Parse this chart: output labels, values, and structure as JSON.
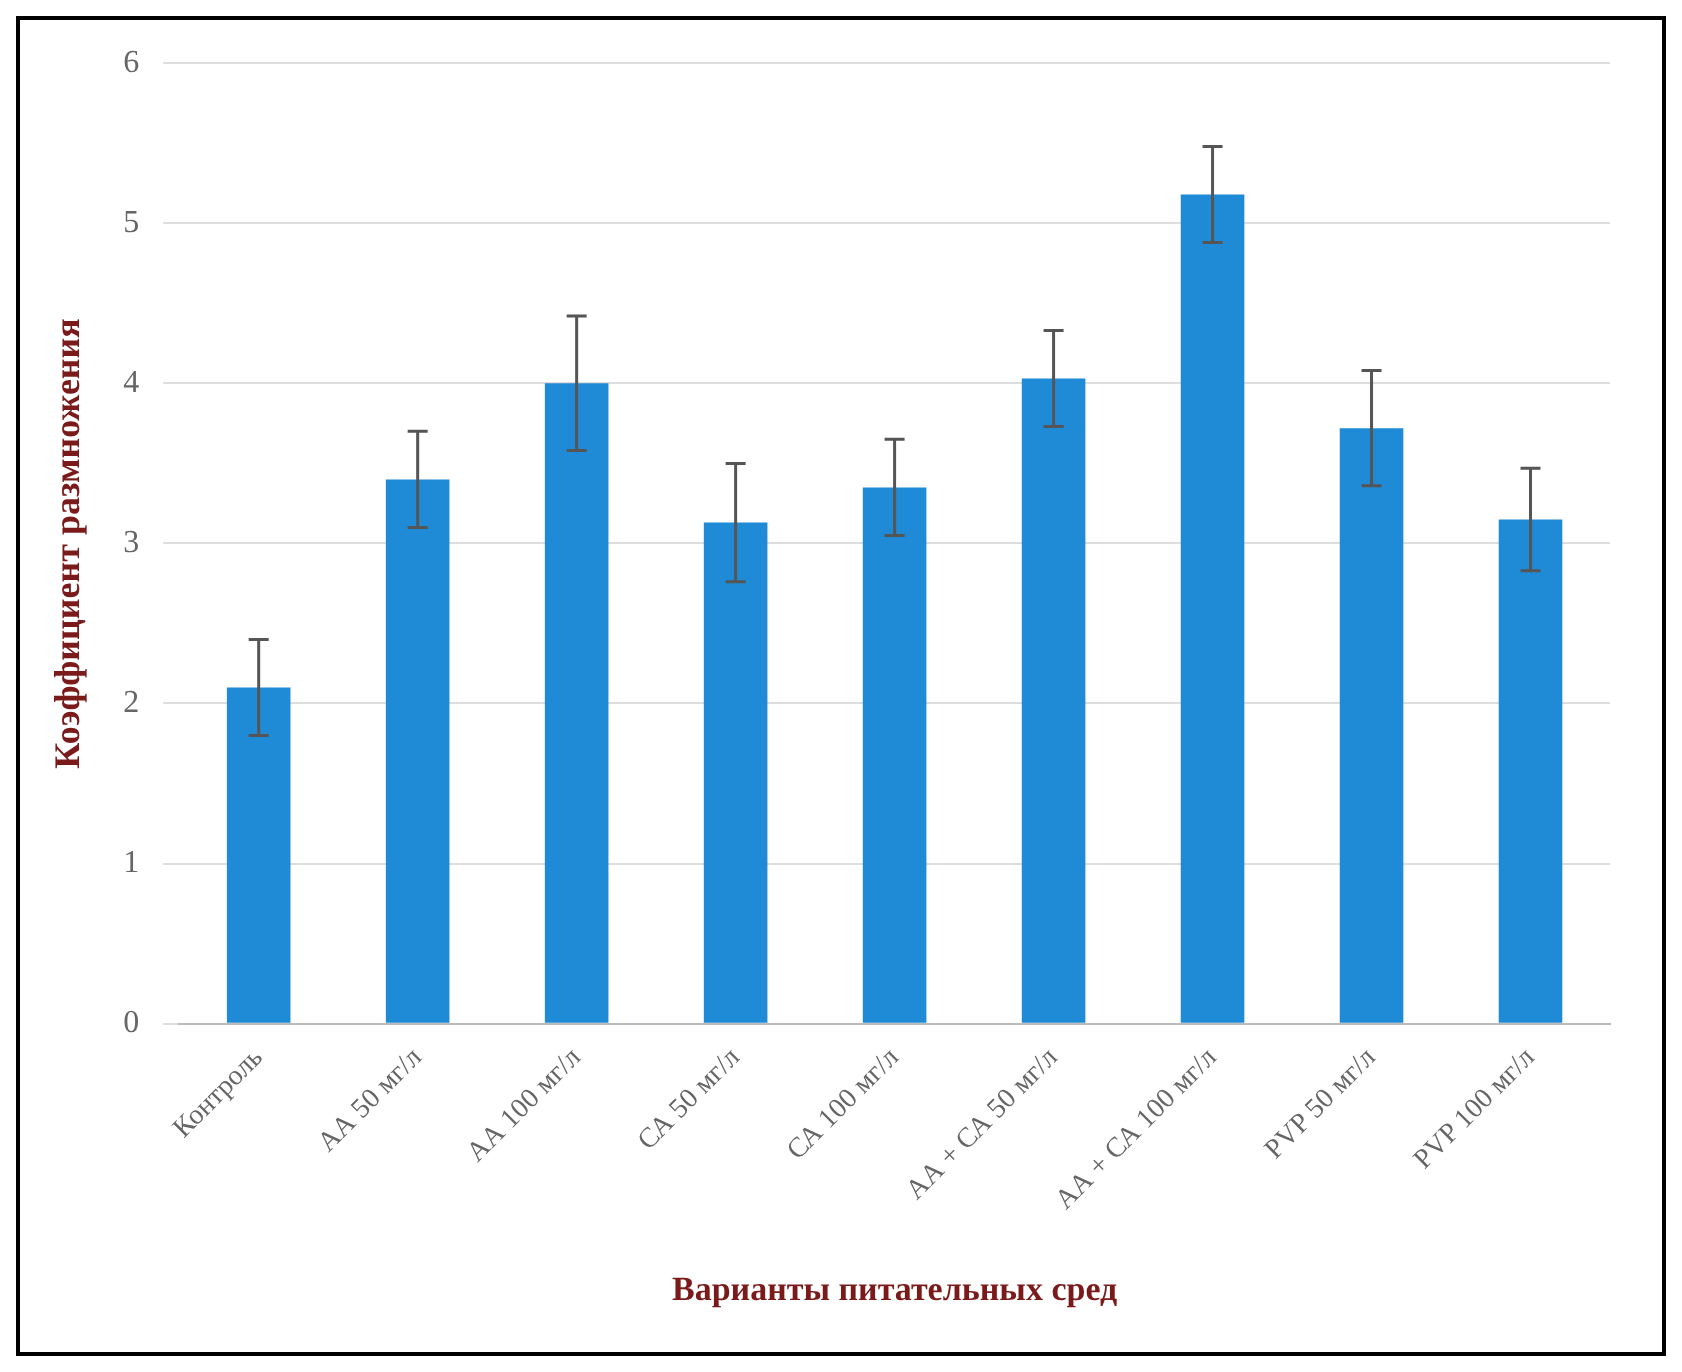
{
  "chart_data": {
    "type": "bar",
    "xlabel": "Варианты питательных сред",
    "ylabel": "Коэффициент размножения",
    "categories": [
      "Контроль",
      "АА 50 мг/л",
      "АА 100 мг/л",
      "СА 50 мг/л",
      "СА 100 мг/л",
      "АА + СА 50 мг/л",
      "АА + СА 100 мг/л",
      "PVP 50 мг/л",
      "PVP 100 мг/л"
    ],
    "values": [
      2.1,
      3.4,
      4.0,
      3.13,
      3.35,
      4.03,
      5.18,
      3.72,
      3.15
    ],
    "errors": [
      0.3,
      0.3,
      0.42,
      0.37,
      0.3,
      0.3,
      0.3,
      0.36,
      0.32
    ],
    "color": "#1f8ad6",
    "ylim": [
      0,
      6
    ],
    "yticks": [
      0,
      1,
      2,
      3,
      4,
      5,
      6
    ],
    "grid": "y",
    "legend": false
  }
}
